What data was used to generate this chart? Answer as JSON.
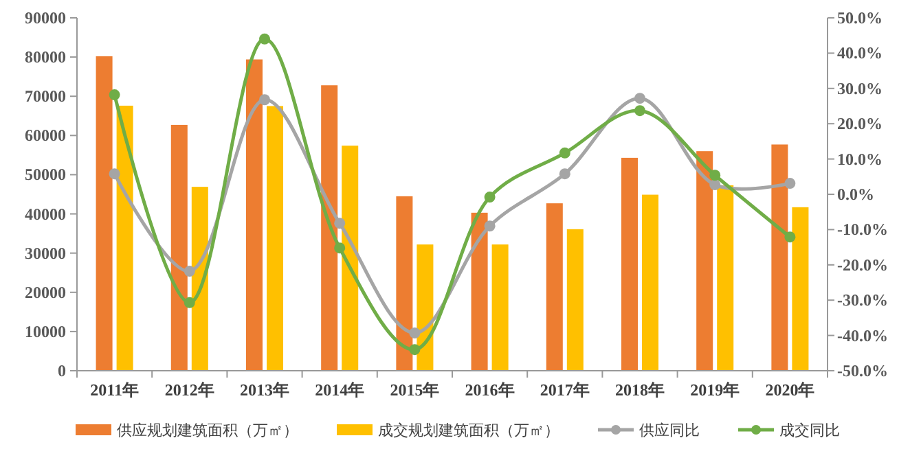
{
  "chart_data": {
    "type": "bar",
    "categories": [
      "2011年",
      "2012年",
      "2013年",
      "2014年",
      "2015年",
      "2016年",
      "2017年",
      "2018年",
      "2019年",
      "2020年"
    ],
    "series": [
      {
        "name": "供应规划建筑面积（万㎡）",
        "color": "#ed7d31",
        "values": [
          80200,
          62700,
          79400,
          72800,
          44500,
          40300,
          42700,
          54300,
          56000,
          57700
        ]
      },
      {
        "name": "成交规划建筑面积（万㎡）",
        "color": "#ffc000",
        "values": [
          67600,
          46900,
          67500,
          57400,
          32200,
          32200,
          36100,
          44900,
          47300,
          41700
        ]
      },
      {
        "name": "供应同比",
        "type": "line",
        "axis": "y2",
        "color": "#a5a5a5",
        "values": [
          5.8,
          -21.8,
          26.8,
          -8.2,
          -39.3,
          -9,
          5.8,
          27.2,
          2.7,
          3.1
        ]
      },
      {
        "name": "成交同比",
        "type": "line",
        "axis": "y2",
        "color": "#70ad47",
        "values": [
          28.2,
          -30.7,
          44,
          -15.2,
          -44,
          -0.8,
          11.7,
          23.7,
          5.4,
          -12.1
        ]
      }
    ],
    "ylim": [
      0,
      90000
    ],
    "yticks": [
      0,
      10000,
      20000,
      30000,
      40000,
      50000,
      60000,
      70000,
      80000,
      90000
    ],
    "y2lim": [
      -50,
      50
    ],
    "y2ticks": [
      {
        "value": -50,
        "label": "-50.0%"
      },
      {
        "value": -40,
        "label": "-40.0%"
      },
      {
        "value": -30,
        "label": "-30.0%"
      },
      {
        "value": -20,
        "label": "-20.0%"
      },
      {
        "value": -10,
        "label": "-10.0%"
      },
      {
        "value": 0,
        "label": "0.0%"
      },
      {
        "value": 10,
        "label": "10.0%"
      },
      {
        "value": 20,
        "label": "20.0%"
      },
      {
        "value": 30,
        "label": "30.0%"
      },
      {
        "value": 40,
        "label": "40.0%"
      },
      {
        "value": 50,
        "label": "50.0%"
      }
    ],
    "marker": "circle",
    "legend": "bottom",
    "grid": false
  }
}
